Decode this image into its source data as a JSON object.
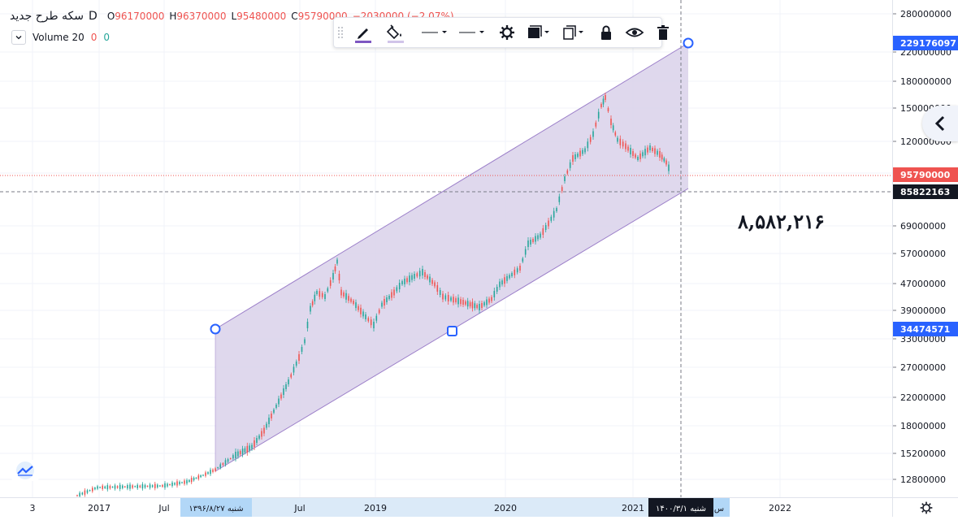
{
  "legend": {
    "symbol": "سکه طرح جدید",
    "interval": "D",
    "open_label": "O",
    "open": "96170000",
    "high_label": "H",
    "high": "96370000",
    "low_label": "L",
    "low": "95480000",
    "close_label": "C",
    "close": "95790000",
    "change": "−2030000 (−2.07%)"
  },
  "volume": {
    "label": "Volume 20",
    "a": "0",
    "b": "0"
  },
  "toolbar": {
    "items": [
      "pencil-icon",
      "fill-bucket-icon",
      "line-style-icon",
      "line-width-icon",
      "gear-icon",
      "template-icon",
      "clone-icon",
      "lock-icon",
      "eye-icon",
      "trash-icon"
    ]
  },
  "price_axis": {
    "ticks": [
      "280000000",
      "220000000",
      "180000000",
      "150000000",
      "120000000",
      "100000000",
      "69000000",
      "57000000",
      "47000000",
      "39000000",
      "33000000",
      "27000000",
      "22000000",
      "18000000",
      "15200000",
      "12800000"
    ],
    "highlight_top": "229176097",
    "last_price": "95790000",
    "crosshair_price": "85822163",
    "channel_low": "34474571"
  },
  "time_axis": {
    "ticks": [
      "3",
      "2017",
      "Jul",
      "Jul",
      "2019",
      "2020",
      "2021",
      "2022"
    ],
    "start_label": "شنبه ۱۳۹۶/۸/۲۷",
    "cursor_label": "۱۴۰۰/۳/۱ شنبه",
    "cursor_extra": "س"
  },
  "measure_value": "۸,۵۸۲,۲۱۶",
  "colors": {
    "down": "#ef5350",
    "up": "#26a69a",
    "channel_fill": "#d9d1ea",
    "channel_line": "#9c7fc9",
    "handle": "#2962ff",
    "axis_highlight": "#2962ff",
    "last_price_bg": "#ef5350",
    "crosshair_bg": "#131722",
    "time_highlight": "#b2d7f7"
  }
}
